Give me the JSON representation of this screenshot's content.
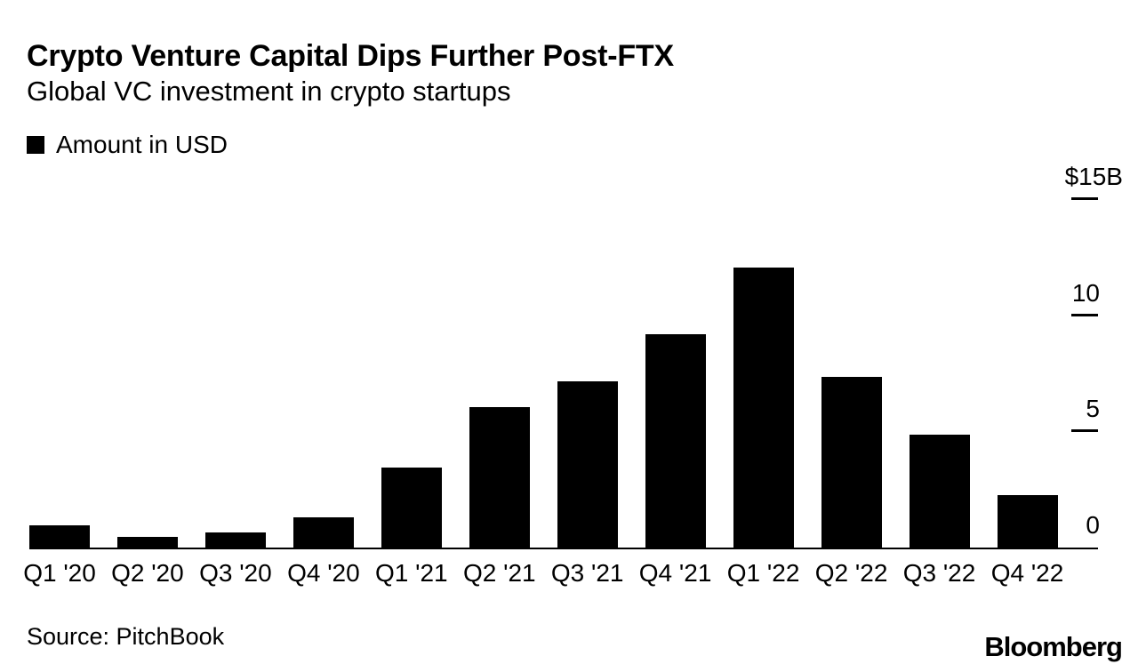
{
  "header": {
    "title": "Crypto Venture Capital Dips Further Post-FTX",
    "subtitle": "Global VC investment in crypto startups"
  },
  "legend": {
    "label": "Amount in USD",
    "swatch_color": "#000000"
  },
  "chart_data": {
    "type": "bar",
    "title": "Crypto Venture Capital Dips Further Post-FTX",
    "subtitle": "Global VC investment in crypto startups",
    "series_name": "Amount in USD",
    "categories": [
      "Q1 '20",
      "Q2 '20",
      "Q3 '20",
      "Q4 '20",
      "Q1 '21",
      "Q2 '21",
      "Q3 '21",
      "Q4 '21",
      "Q1 '22",
      "Q2 '22",
      "Q3 '22",
      "Q4 '22"
    ],
    "values": [
      1.0,
      0.5,
      0.7,
      1.35,
      3.5,
      6.1,
      7.2,
      9.2,
      12.1,
      7.4,
      4.9,
      2.3
    ],
    "unit": "USD billions",
    "xlabel": "",
    "ylabel": "",
    "ylim": [
      0,
      15
    ],
    "yticks": [
      {
        "label": "$15B",
        "value": 15
      },
      {
        "label": "10",
        "value": 10
      },
      {
        "label": "5",
        "value": 5
      },
      {
        "label": "0",
        "value": 0
      }
    ],
    "bar_color": "#000000",
    "grid": false,
    "legend_position": "top-left",
    "value_axis_side": "right"
  },
  "footer": {
    "source": "Source: PitchBook",
    "brand": "Bloomberg"
  }
}
